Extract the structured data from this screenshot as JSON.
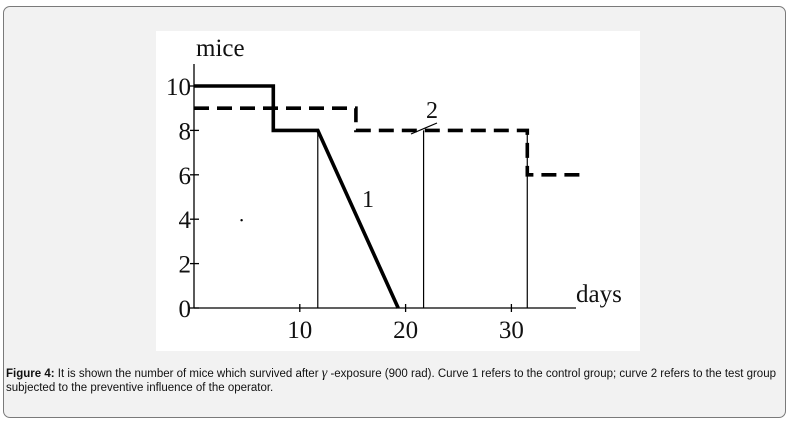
{
  "figure": {
    "caption_label": "Figure 4:",
    "caption_before_symbol": " It is shown the number of mice which survived after ",
    "caption_symbol": "γ",
    "caption_after_symbol": " -exposure (900 rad). Curve 1 refers to the control group; curve 2 refers to the test group subjected to the preventive influence of the operator."
  },
  "chart_data": {
    "type": "line",
    "ylabel": "mice",
    "xlabel": "days",
    "xlim": [
      0,
      35
    ],
    "ylim": [
      0,
      11
    ],
    "x_ticks": [
      10,
      20,
      30
    ],
    "y_ticks": [
      0,
      2,
      4,
      6,
      8,
      10
    ],
    "x_tick_labels": [
      "10",
      "20",
      "30"
    ],
    "y_tick_labels": [
      "0",
      "2",
      "4",
      "6",
      "8",
      "10"
    ],
    "grid": false,
    "series": [
      {
        "name": "1",
        "style": "solid-thick",
        "color": "#000000",
        "x": [
          0,
          7.5,
          7.5,
          11.7,
          19.3
        ],
        "y": [
          10,
          10,
          8,
          8,
          0
        ]
      },
      {
        "name": "2",
        "style": "dashed-thick",
        "color": "#000000",
        "x": [
          0,
          15.3,
          15.3,
          31.5,
          31.5,
          37
        ],
        "y": [
          9,
          9,
          8,
          8,
          6,
          6
        ]
      }
    ],
    "reference_lines_x": [
      11.7,
      21.7,
      31.5
    ],
    "stray_point": {
      "x": 4.5,
      "y": 4
    }
  }
}
